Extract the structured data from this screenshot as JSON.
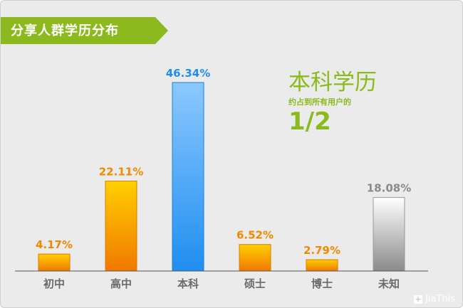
{
  "title": "分享人群学历分布",
  "highlight": {
    "category": "本科学历",
    "caption": "约占到所有用户的",
    "fraction": "1/2"
  },
  "watermark": "JiaThis",
  "colors": {
    "background": "#ebebeb",
    "banner": "#8cba1e",
    "orange": "#f08a00",
    "blue": "#1f8ef0",
    "gray": "#8a8a8a",
    "accent_text": "#8cba1e"
  },
  "chart_data": {
    "type": "bar",
    "title": "分享人群学历分布",
    "categories": [
      "初中",
      "高中",
      "本科",
      "硕士",
      "博士",
      "未知"
    ],
    "values": [
      4.17,
      22.11,
      46.34,
      6.52,
      2.79,
      18.08
    ],
    "value_labels": [
      "4.17%",
      "22.11%",
      "46.34%",
      "6.52%",
      "2.79%",
      "18.08%"
    ],
    "bar_colors": [
      "orange",
      "orange",
      "blue",
      "orange",
      "orange",
      "gray"
    ],
    "ylim": [
      0,
      46.34
    ],
    "grid": false,
    "xlabel": "",
    "ylabel": ""
  }
}
